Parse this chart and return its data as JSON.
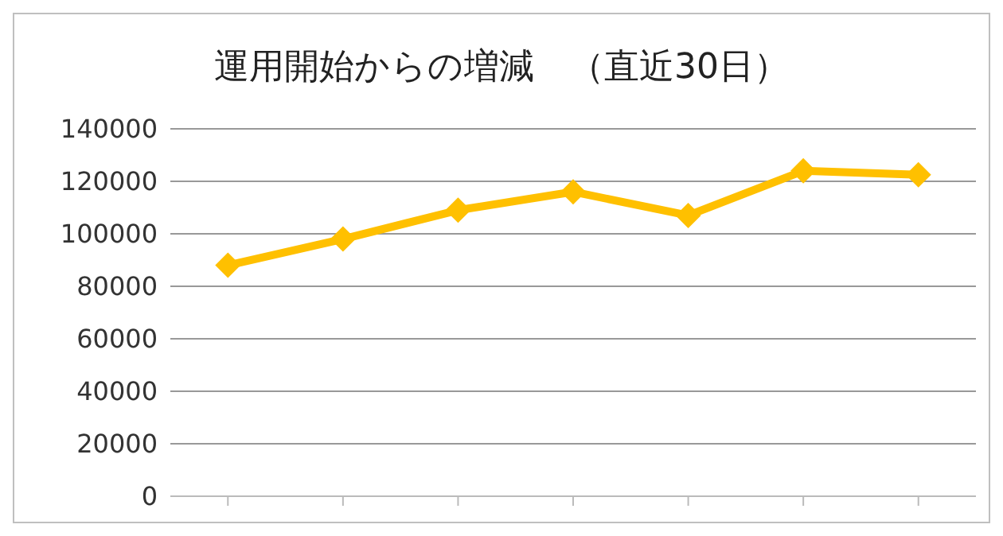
{
  "chart_data": {
    "type": "line",
    "title": "運用開始からの増減　（直近30日）",
    "categories": [
      null,
      null,
      null,
      null,
      null,
      null,
      null
    ],
    "series": [
      {
        "color": "#ffc000",
        "values": [
          88000,
          98000,
          109000,
          116000,
          107000,
          124000,
          122500
        ]
      }
    ],
    "ylim": [
      0,
      140000
    ],
    "yticks": [
      0,
      20000,
      40000,
      60000,
      80000,
      100000,
      120000,
      140000
    ],
    "grid": "y",
    "legend": false,
    "marker": "diamond",
    "line_style": "solid"
  }
}
